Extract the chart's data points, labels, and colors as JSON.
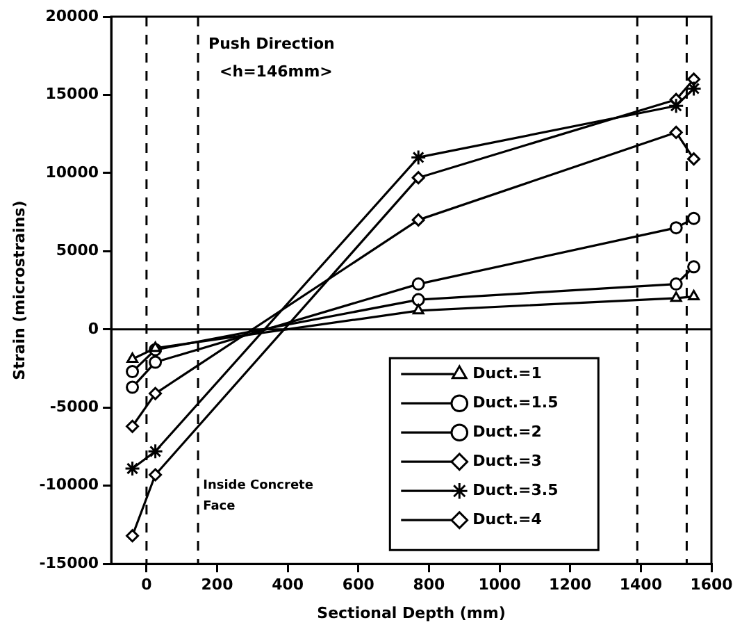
{
  "chart_data": {
    "type": "line",
    "xlabel": "Sectional Depth (mm)",
    "ylabel": "Strain (microstrains)",
    "xlim": [
      -100,
      1600
    ],
    "xticks": [
      0,
      200,
      400,
      600,
      800,
      1000,
      1200,
      1400,
      1600
    ],
    "ylim": [
      -15000,
      20000
    ],
    "yticks": [
      -15000,
      -10000,
      -5000,
      0,
      5000,
      10000,
      15000,
      20000
    ],
    "x": [
      -40,
      25,
      770,
      1500,
      1550
    ],
    "series": [
      {
        "name": "Duct.=1",
        "color": "#000000",
        "marker": "triangle",
        "values": [
          -1900,
          -1200,
          1200,
          2000,
          2100
        ]
      },
      {
        "name": "Duct.=1.5",
        "color": "#000000",
        "marker": "circle",
        "values": [
          -2700,
          -1300,
          1900,
          2900,
          4000
        ]
      },
      {
        "name": "Duct.=2",
        "color": "#000000",
        "marker": "circle",
        "values": [
          -3700,
          -2100,
          2900,
          6500,
          7100
        ]
      },
      {
        "name": "Duct.=3",
        "color": "#000000",
        "marker": "diamond",
        "values": [
          -6200,
          -4100,
          7000,
          12600,
          10900
        ]
      },
      {
        "name": "Duct.=3.5",
        "color": "#000000",
        "marker": "cross",
        "values": [
          -8900,
          -7800,
          11000,
          14300,
          15400
        ]
      },
      {
        "name": "Duct.=4",
        "color": "#000000",
        "marker": "diamond",
        "values": [
          -13200,
          -9300,
          9700,
          14700,
          16000
        ]
      }
    ],
    "ref_lines": [
      {
        "axis": "y",
        "value": 0,
        "line_style": "solid"
      },
      {
        "axis": "x",
        "value": 0,
        "line_style": "dashed"
      },
      {
        "axis": "x",
        "value": 146,
        "line_style": "dashed"
      },
      {
        "axis": "x",
        "value": 1390,
        "line_style": "dashed"
      },
      {
        "axis": "x",
        "value": 1530,
        "line_style": "dashed"
      }
    ],
    "annotations": [
      "Push Direction",
      "<h=146mm>",
      {
        "text": "Inside Concrete Face",
        "x": 160,
        "y": -10000
      }
    ],
    "legend": "bottom right",
    "grid": false,
    "line_style": "solid"
  }
}
